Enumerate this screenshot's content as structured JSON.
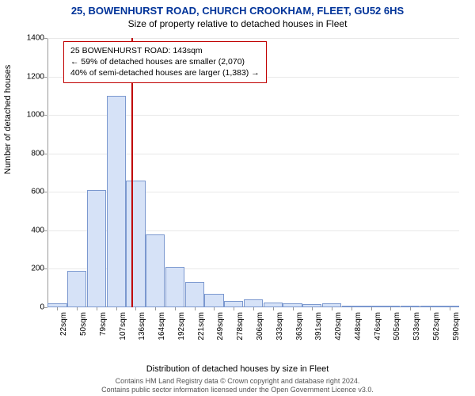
{
  "title_main": "25, BOWENHURST ROAD, CHURCH CROOKHAM, FLEET, GU52 6HS",
  "title_sub": "Size of property relative to detached houses in Fleet",
  "y_axis_label": "Number of detached houses",
  "x_axis_label": "Distribution of detached houses by size in Fleet",
  "footer": {
    "line1": "Contains HM Land Registry data © Crown copyright and database right 2024.",
    "line2": "Contains public sector information licensed under the Open Government Licence v3.0."
  },
  "chart": {
    "type": "histogram",
    "ylim": [
      0,
      1400
    ],
    "ytick_step": 200,
    "yticks": [
      0,
      200,
      400,
      600,
      800,
      1000,
      1200,
      1400
    ],
    "xticks": [
      "22sqm",
      "50sqm",
      "79sqm",
      "107sqm",
      "136sqm",
      "164sqm",
      "192sqm",
      "221sqm",
      "249sqm",
      "278sqm",
      "306sqm",
      "333sqm",
      "363sqm",
      "391sqm",
      "420sqm",
      "448sqm",
      "476sqm",
      "505sqm",
      "533sqm",
      "562sqm",
      "590sqm"
    ],
    "bar_values": [
      20,
      190,
      610,
      1100,
      660,
      380,
      210,
      130,
      70,
      35,
      40,
      25,
      22,
      15,
      20,
      10,
      5,
      0,
      0,
      0,
      0
    ],
    "reference_line_index": 4.3,
    "bar_color": "#d6e2f7",
    "bar_border": "#7b98cf",
    "refline_color": "#c00000",
    "grid_color": "#e8e8e8",
    "background_color": "#ffffff",
    "info_box": {
      "line1": "25 BOWENHURST ROAD: 143sqm",
      "line2": "← 59% of detached houses are smaller (2,070)",
      "line3": "40% of semi-detached houses are larger (1,383) →"
    }
  }
}
